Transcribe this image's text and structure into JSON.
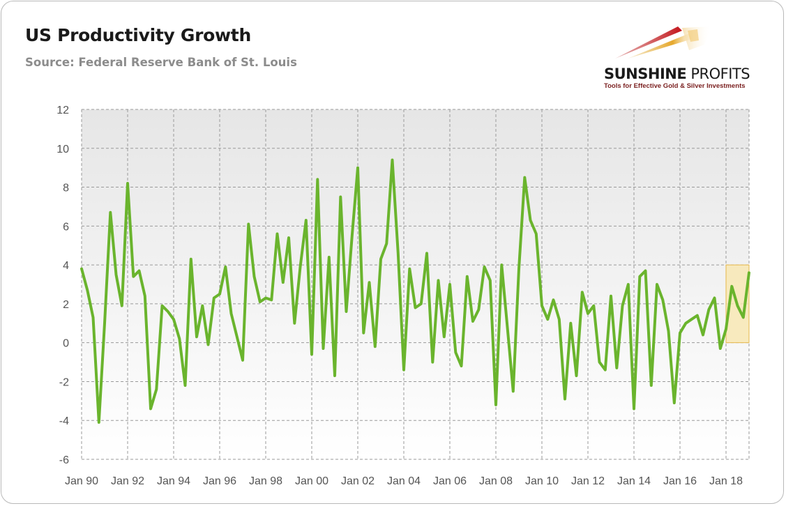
{
  "header": {
    "title": "US Productivity Growth",
    "source": "Source: Federal Reserve Bank of St. Louis"
  },
  "logo": {
    "name_bold": "SUNSHINE",
    "name_light": " PROFITS",
    "tagline": "Tools for Effective Gold & Silver Investments"
  },
  "colors": {
    "line": "#6ab42d",
    "grid": "#999999",
    "highlight_fill": "#f8e7b4",
    "highlight_stroke": "#e6b84a"
  },
  "chart_data": {
    "type": "line",
    "title": "US Productivity Growth",
    "x_start": "1990-Q1",
    "frequency": "quarterly",
    "ylim": [
      -6,
      12
    ],
    "yticks": [
      -6,
      -4,
      -2,
      0,
      2,
      4,
      6,
      8,
      10,
      12
    ],
    "xtick_labels": [
      "Jan 90",
      "Jan 92",
      "Jan 94",
      "Jan 96",
      "Jan 98",
      "Jan 00",
      "Jan 02",
      "Jan 04",
      "Jan 06",
      "Jan 08",
      "Jan 10",
      "Jan 12",
      "Jan 14",
      "Jan 16",
      "Jan 18"
    ],
    "grid": true,
    "background_gradient": [
      "#e6e6e6",
      "#ffffff"
    ],
    "highlight_region": {
      "from": "2018-Q1",
      "to": "2019-Q1",
      "ymin": 0,
      "ymax": 4
    },
    "series": [
      {
        "values": [
          3.8,
          2.7,
          1.3,
          -4.1,
          1.0,
          6.7,
          3.5,
          1.9,
          8.2,
          3.4,
          3.7,
          2.4,
          -3.4,
          -2.4,
          1.9,
          1.6,
          1.2,
          0.2,
          -2.2,
          4.3,
          0.3,
          1.9,
          -0.1,
          2.3,
          2.5,
          3.9,
          1.5,
          0.3,
          -0.9,
          6.1,
          3.4,
          2.1,
          2.3,
          2.2,
          5.6,
          3.1,
          5.4,
          1.0,
          3.9,
          6.3,
          -0.6,
          8.4,
          -0.3,
          4.4,
          -1.7,
          7.5,
          1.6,
          5.5,
          9.0,
          0.5,
          3.1,
          -0.2,
          4.3,
          5.1,
          9.4,
          4.6,
          -1.4,
          3.8,
          1.8,
          2.0,
          4.6,
          -1.0,
          3.2,
          0.3,
          3.0,
          -0.5,
          -1.2,
          3.4,
          1.1,
          1.7,
          3.9,
          3.2,
          -3.2,
          4.0,
          0.8,
          -2.5,
          3.8,
          8.5,
          6.3,
          5.6,
          1.9,
          1.2,
          2.2,
          1.2,
          -2.9,
          1.0,
          -1.7,
          2.6,
          1.5,
          1.9,
          -1.0,
          -1.4,
          2.4,
          -1.3,
          1.9,
          3.0,
          -3.4,
          3.4,
          3.7,
          -2.2,
          3.0,
          2.2,
          0.6,
          -3.1,
          0.5,
          1.0,
          1.2,
          1.4,
          0.4,
          1.7,
          2.3,
          -0.3,
          0.7,
          2.9,
          1.9,
          1.3,
          3.6
        ]
      }
    ]
  }
}
